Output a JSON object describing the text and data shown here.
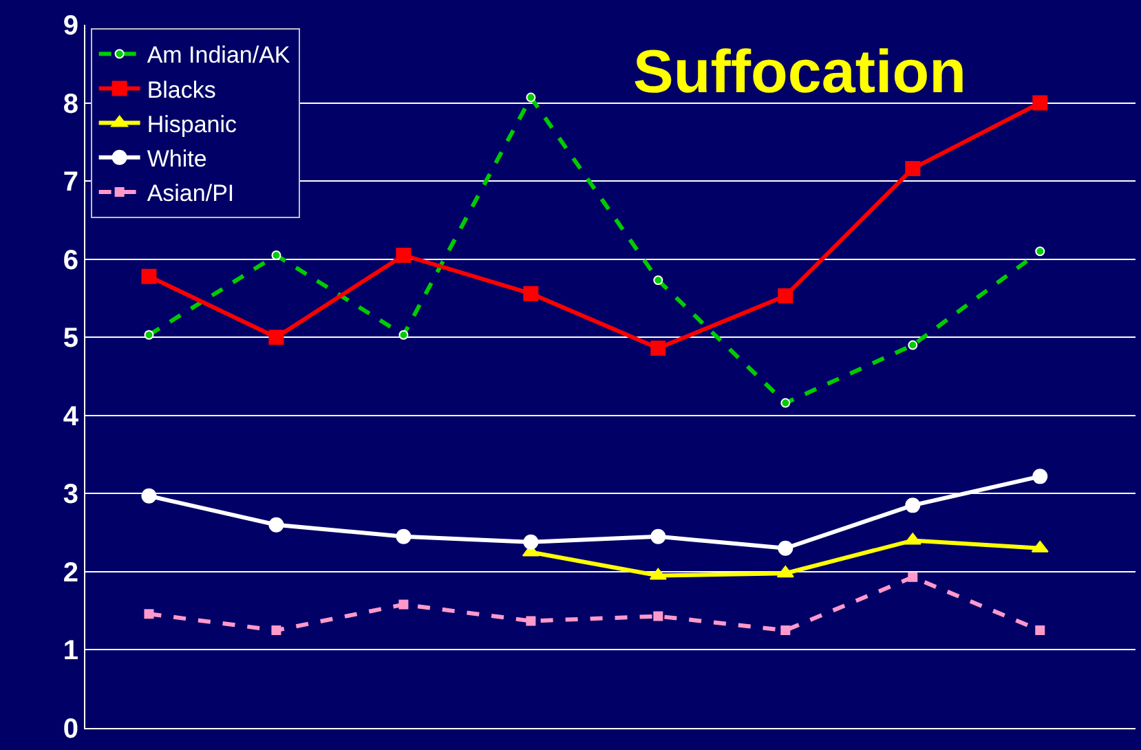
{
  "chart_data": {
    "type": "line",
    "title": "Suffocation",
    "categories": [
      null,
      null,
      null,
      null,
      null,
      null,
      null,
      null
    ],
    "series": [
      {
        "name": "Am Indian/AK",
        "color": "#00cc00",
        "line_style": "dashed",
        "marker": "circle",
        "values": [
          5.03,
          6.05,
          5.03,
          8.07,
          5.73,
          4.16,
          4.9,
          6.1
        ]
      },
      {
        "name": "Blacks",
        "color": "#ff0000",
        "line_style": "solid",
        "marker": "square",
        "values": [
          5.78,
          5.0,
          6.05,
          5.56,
          4.86,
          5.53,
          7.16,
          8.0
        ]
      },
      {
        "name": "Hispanic",
        "color": "#ffff00",
        "line_style": "solid",
        "marker": "triangle",
        "values": [
          null,
          null,
          null,
          2.25,
          1.95,
          1.98,
          2.4,
          2.3
        ]
      },
      {
        "name": "White",
        "color": "#ffffff",
        "line_style": "solid",
        "marker": "circle",
        "values": [
          2.97,
          2.6,
          2.45,
          2.38,
          2.45,
          2.3,
          2.85,
          3.22
        ]
      },
      {
        "name": "Asian/PI",
        "color": "#ff99cc",
        "line_style": "dashed",
        "marker": "square",
        "values": [
          1.46,
          1.25,
          1.58,
          1.37,
          1.43,
          1.25,
          1.93,
          1.25
        ]
      }
    ],
    "ylim": [
      0,
      9
    ],
    "yticks": [
      0,
      1,
      2,
      3,
      4,
      5,
      6,
      7,
      8,
      9
    ],
    "grid": "y",
    "legend": "top left",
    "tick_labels": "y"
  }
}
